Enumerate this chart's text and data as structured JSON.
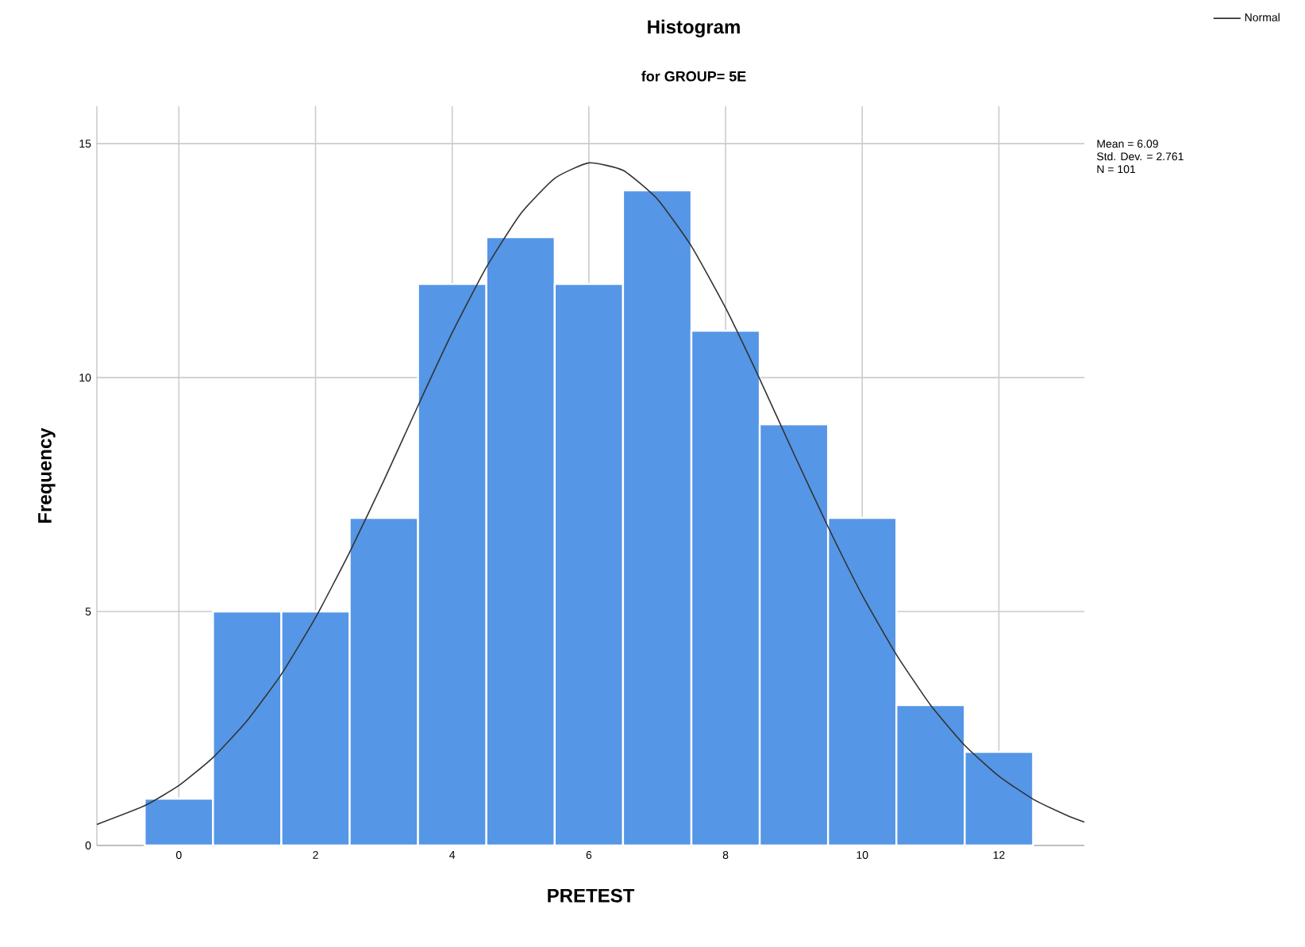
{
  "chart_data": {
    "type": "histogram",
    "title": "Histogram",
    "subtitle": "for GROUP= 5E",
    "xlabel": "PRETEST",
    "ylabel": "Frequency",
    "bins": [
      -0.5,
      0.5,
      1.5,
      2.5,
      3.5,
      4.5,
      5.5,
      6.5,
      7.5,
      8.5,
      9.5,
      10.5,
      11.5,
      12.5
    ],
    "values": [
      1,
      5,
      5,
      7,
      12,
      13,
      12,
      14,
      11,
      9,
      7,
      3,
      2
    ],
    "color": "#5596e6",
    "series": [
      {
        "type": "line",
        "name": "Normal",
        "color": "#333333",
        "x": [
          -1.2,
          -0.5,
          0,
          0.5,
          1,
          1.5,
          2,
          2.5,
          3,
          3.5,
          4,
          4.5,
          5,
          5.5,
          6,
          6.5,
          7,
          7.5,
          8,
          8.5,
          9,
          9.5,
          10,
          10.5,
          11,
          11.5,
          12,
          12.5,
          13,
          13.25
        ],
        "values": [
          0.45,
          0.85,
          1.28,
          1.88,
          2.67,
          3.66,
          4.87,
          6.27,
          7.8,
          9.4,
          10.96,
          12.36,
          13.5,
          14.26,
          14.59,
          14.43,
          13.82,
          12.81,
          11.49,
          9.97,
          8.37,
          6.81,
          5.35,
          4.08,
          3.0,
          2.14,
          1.48,
          0.99,
          0.64,
          0.5
        ]
      }
    ],
    "xlim": [
      -1.2,
      13.25
    ],
    "ylim": [
      0,
      15.8
    ],
    "xticks": [
      0,
      2,
      4,
      6,
      8,
      10,
      12
    ],
    "yticks": [
      0,
      5,
      10,
      15
    ],
    "grid": true,
    "legend": "top right",
    "annotations": [
      "Mean = 6.09",
      "Std. Dev. = 2.761",
      "N = 101"
    ]
  }
}
